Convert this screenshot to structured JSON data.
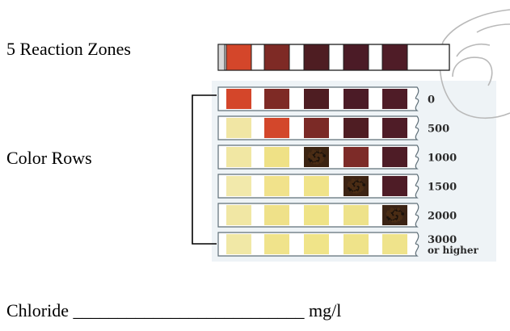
{
  "labels": {
    "reaction_zones": "5 Reaction Zones",
    "color_rows": "Color Rows",
    "chloride_prefix": "Chloride",
    "chloride_blank": "__________________________",
    "chloride_unit": "mg/l"
  },
  "strip": {
    "zone_colors": [
      "#d4462a",
      "#7e2a25",
      "#4e1d22",
      "#4b1b26",
      "#4f1c27"
    ]
  },
  "rows": [
    {
      "value": "0",
      "value_line2": "",
      "zones": [
        "#d4462a",
        "#7e2a25",
        "#4e1d22",
        "#4b1b26",
        "#4f1c27"
      ],
      "speckled": -1
    },
    {
      "value": "500",
      "value_line2": "",
      "zones": [
        "#f1e6a4",
        "#d3472b",
        "#7b2a26",
        "#4f1d23",
        "#4f1c27"
      ],
      "speckled": -1
    },
    {
      "value": "1000",
      "value_line2": "",
      "zones": [
        "#f1e7a3",
        "#efe186",
        "#3c2412",
        "#7d2b28",
        "#4e1c26"
      ],
      "speckled": 2
    },
    {
      "value": "1500",
      "value_line2": "",
      "zones": [
        "#f2e9ab",
        "#f1e28b",
        "#f0e389",
        "#3d2414",
        "#4e1c26"
      ],
      "speckled": 3
    },
    {
      "value": "2000",
      "value_line2": "",
      "zones": [
        "#f1e7a4",
        "#efe189",
        "#efe387",
        "#eee28a",
        "#3b2314"
      ],
      "speckled": 4
    },
    {
      "value": "3000",
      "value_line2": "or higher",
      "zones": [
        "#f1e8a6",
        "#f0e38b",
        "#f0e489",
        "#efe38a",
        "#efe38b"
      ],
      "speckled": -1
    }
  ]
}
